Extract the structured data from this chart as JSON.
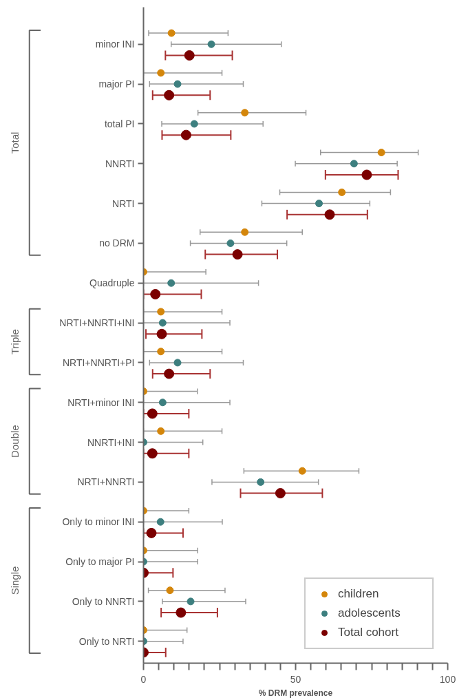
{
  "chart_data": {
    "type": "scatter",
    "orientation": "horizontal",
    "xlabel": "% DRM prevalence",
    "categories": [
      "minor INI",
      "major PI",
      "total PI",
      "NNRTI",
      "NRTI",
      "no DRM",
      "Quadruple",
      "NRTI+NNRTI+INI",
      "NRTI+NNRTI+PI",
      "NRTI+minor INI",
      "NNRTI+INI",
      "NRTI+NNRTI",
      "Only to minor INI",
      "Only to major PI",
      "Only to NNRTI",
      "Only to NRTI"
    ],
    "xlim": [
      0,
      100
    ],
    "xticks": [
      0,
      {
        "value": 5,
        "label": null
      },
      {
        "value": 10,
        "label": null
      },
      {
        "value": 15,
        "label": null
      },
      {
        "value": 20,
        "label": null
      },
      {
        "value": 25,
        "label": null
      },
      {
        "value": 30,
        "label": null
      },
      {
        "value": 35,
        "label": null
      },
      {
        "value": 40,
        "label": null
      },
      {
        "value": 45,
        "label": null
      },
      50,
      {
        "value": 55,
        "label": null
      },
      {
        "value": 60,
        "label": null
      },
      {
        "value": 65,
        "label": null
      },
      {
        "value": 70,
        "label": null
      },
      {
        "value": 75,
        "label": null
      },
      {
        "value": 80,
        "label": null
      },
      {
        "value": 85,
        "label": null
      },
      {
        "value": 90,
        "label": null
      },
      {
        "value": 95,
        "label": null
      },
      100
    ],
    "marker": "circle",
    "grid": false,
    "legend": "bottom right",
    "annotations": [
      "Total",
      "Triple",
      "Double",
      "Single"
    ],
    "series": [
      {
        "name": "children",
        "color": "#d4860b",
        "values": [
          9.2,
          5.7,
          33.3,
          78.2,
          65.2,
          33.3,
          0,
          5.7,
          5.7,
          0,
          5.7,
          52.2,
          0,
          0,
          8.7,
          0
        ],
        "errors": [
          [
            1.7,
            27.8
          ],
          [
            0,
            25.8
          ],
          [
            17.9,
            53.4
          ],
          [
            58.2,
            90.3
          ],
          [
            44.8,
            81.2
          ],
          [
            18.6,
            52.2
          ],
          [
            0,
            20.5
          ],
          [
            0,
            25.8
          ],
          [
            0,
            25.8
          ],
          [
            0,
            17.7
          ],
          [
            0,
            25.8
          ],
          [
            33.0,
            70.8
          ],
          [
            0,
            14.9
          ],
          [
            0,
            17.8
          ],
          [
            1.6,
            26.8
          ],
          [
            0,
            14.3
          ]
        ]
      },
      {
        "name": "adolescents",
        "color": "#3d7f7f",
        "values": [
          22.3,
          11.2,
          16.7,
          69.2,
          57.7,
          28.6,
          9.1,
          6.3,
          11.2,
          6.3,
          0,
          38.5,
          5.6,
          0,
          15.5,
          0
        ],
        "errors": [
          [
            9.1,
            45.3
          ],
          [
            2.0,
            32.8
          ],
          [
            6.0,
            39.3
          ],
          [
            49.9,
            83.4
          ],
          [
            38.9,
            74.4
          ],
          [
            15.4,
            47.1
          ],
          [
            0,
            37.8
          ],
          [
            0,
            28.4
          ],
          [
            2.0,
            32.8
          ],
          [
            0,
            28.4
          ],
          [
            0,
            19.5
          ],
          [
            22.5,
            57.5
          ],
          [
            0,
            25.9
          ],
          [
            0,
            17.8
          ],
          [
            6.2,
            33.6
          ],
          [
            0,
            13.0
          ]
        ]
      },
      {
        "name": "Total cohort",
        "color": "#7b0000",
        "values": [
          15.1,
          8.4,
          14.0,
          73.4,
          61.2,
          30.9,
          3.9,
          6.0,
          8.4,
          2.9,
          2.9,
          45.0,
          2.6,
          0,
          12.3,
          0
        ],
        "errors": [
          [
            7.2,
            29.2
          ],
          [
            3.0,
            21.9
          ],
          [
            6.1,
            28.7
          ],
          [
            59.8,
            83.7
          ],
          [
            47.2,
            73.6
          ],
          [
            20.3,
            44.0
          ],
          [
            0,
            19.0
          ],
          [
            0.8,
            19.2
          ],
          [
            3.0,
            21.9
          ],
          [
            0,
            14.9
          ],
          [
            0,
            14.9
          ],
          [
            31.9,
            58.8
          ],
          [
            0,
            13.0
          ],
          [
            0,
            9.7
          ],
          [
            5.8,
            24.3
          ],
          [
            0,
            7.3
          ]
        ]
      }
    ]
  }
}
